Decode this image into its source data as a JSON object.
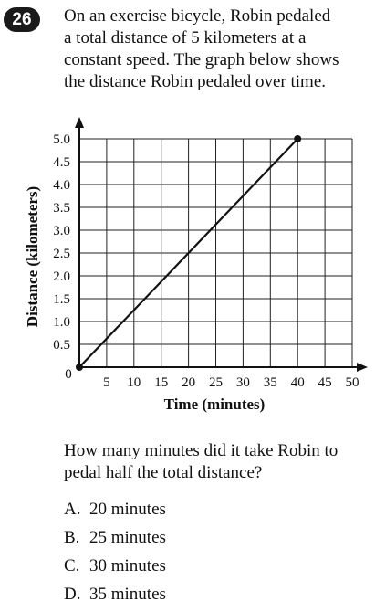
{
  "question_number": "26",
  "stem_lines": [
    "On an exercise bicycle, Robin pedaled",
    "a total distance of 5 kilometers at a",
    "constant speed. The graph below shows",
    "the distance Robin pedaled over time."
  ],
  "question_lines": [
    "How many minutes did it take Robin to",
    "pedal half the total distance?"
  ],
  "choices": [
    {
      "letter": "A.",
      "text": "20 minutes"
    },
    {
      "letter": "B.",
      "text": "25 minutes"
    },
    {
      "letter": "C.",
      "text": "30 minutes"
    },
    {
      "letter": "D.",
      "text": "35 minutes"
    }
  ],
  "chart_data": {
    "type": "line",
    "title": "",
    "xlabel": "Time (minutes)",
    "ylabel": "Distance (kilometers)",
    "xlim": [
      0,
      50
    ],
    "ylim": [
      0,
      5
    ],
    "grid": true,
    "x_ticks": [
      "5",
      "10",
      "15",
      "20",
      "25",
      "30",
      "35",
      "40",
      "45",
      "50"
    ],
    "y_ticks": [
      "0.5",
      "1.0",
      "1.5",
      "2.0",
      "2.5",
      "3.0",
      "3.5",
      "4.0",
      "4.5",
      "5.0"
    ],
    "origin_label": "0",
    "series": [
      {
        "x": [
          0,
          40
        ],
        "y": [
          0,
          5
        ]
      }
    ]
  }
}
